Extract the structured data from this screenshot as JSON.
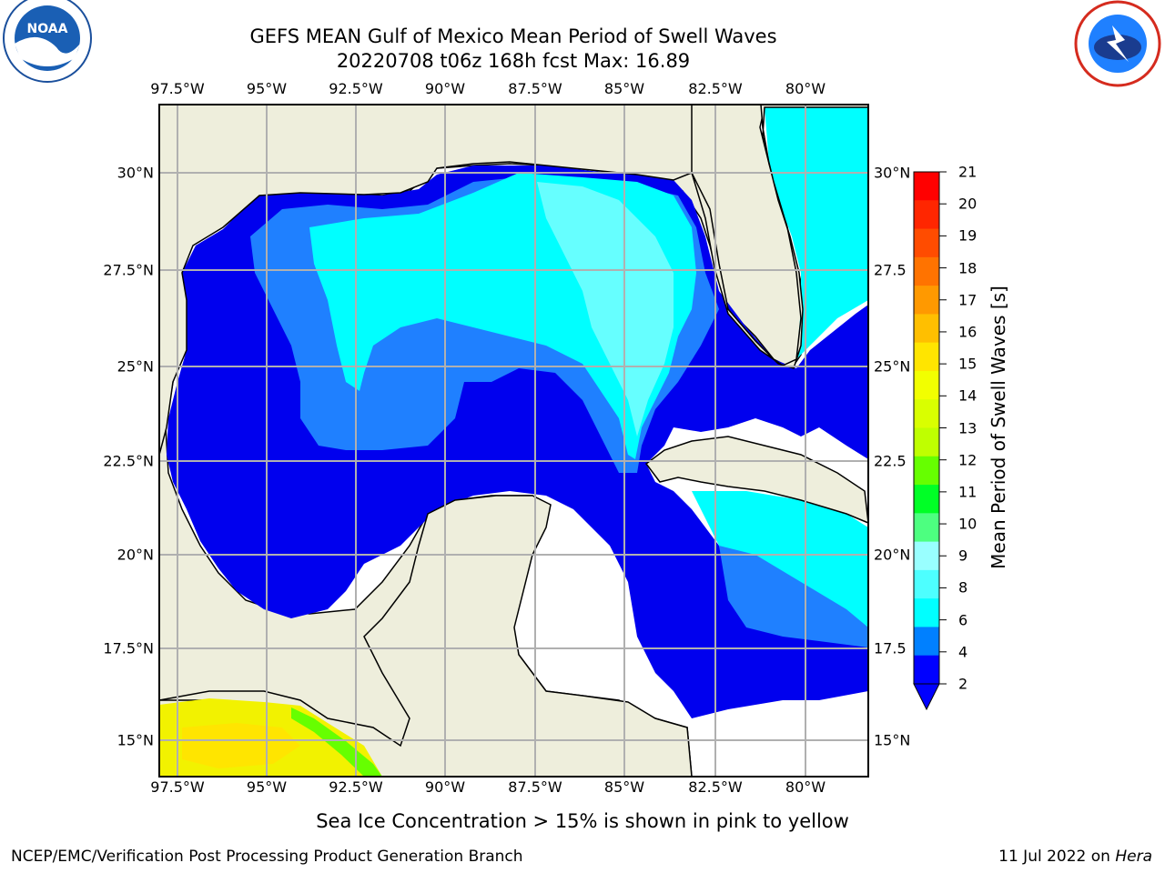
{
  "title_line1": "GEFS MEAN Gulf of Mexico Mean Period of Swell Waves",
  "title_line2": "20220708 t06z 168h fcst   Max: 16.89",
  "x_ticks": [
    "97.5°W",
    "95°W",
    "92.5°W",
    "90°W",
    "87.5°W",
    "85°W",
    "82.5°W",
    "80°W"
  ],
  "y_ticks_left": [
    "30°N",
    "27.5°N",
    "25°N",
    "22.5°N",
    "20°N",
    "17.5°N",
    "15°N"
  ],
  "y_ticks_right": [
    "30°N",
    "27.5",
    "25°N",
    "22.5",
    "20°N",
    "17.5",
    "15°N"
  ],
  "colorbar": {
    "label": "Mean Period of Swell Waves [s]",
    "ticks": [
      "21",
      "20",
      "19",
      "18",
      "17",
      "16",
      "15",
      "14",
      "13",
      "12",
      "11",
      "10",
      "9",
      "8",
      "6",
      "4",
      "2"
    ],
    "colors": [
      "#ff0000",
      "#ff2600",
      "#ff4c00",
      "#ff7300",
      "#ff9900",
      "#ffbf00",
      "#ffe500",
      "#f2ff00",
      "#d9ff00",
      "#bfff00",
      "#66ff00",
      "#00ff26",
      "#4dff80",
      "#99ffff",
      "#4dffff",
      "#00ffff",
      "#0080ff",
      "#0000ff"
    ]
  },
  "caption": "Sea Ice Concentration > 15% is shown in pink to yellow",
  "credit": "NCEP/EMC/Verification Post Processing Product Generation Branch",
  "date_prefix": "11 Jul 2022 on ",
  "date_host": "Hera",
  "logos": {
    "left": "NOAA",
    "right": "NATIONAL WEATHER SERVICE"
  },
  "colors": {
    "land": "#eeeedc",
    "deep_blue": "#0000ee",
    "mid_blue": "#1f80ff",
    "cyan": "#00ffff",
    "light_cyan": "#66ffff"
  }
}
